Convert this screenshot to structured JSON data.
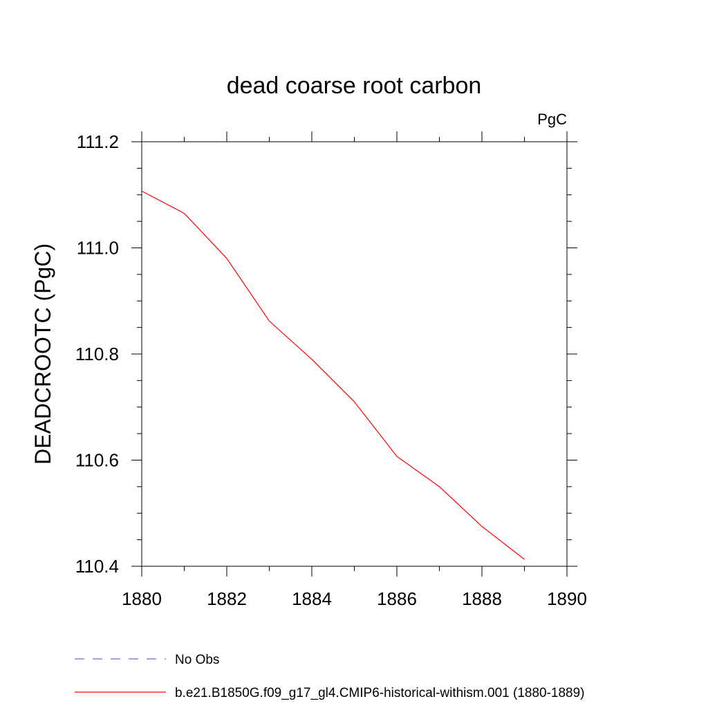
{
  "chart_data": {
    "type": "line",
    "title": "dead coarse root carbon",
    "units_label": "PgC",
    "xlabel": "",
    "ylabel": "DEADCROOTC  (PgC)",
    "xlim": [
      1880,
      1890
    ],
    "ylim": [
      110.4,
      111.2
    ],
    "x_ticks": [
      "1880",
      "1882",
      "1884",
      "1886",
      "1888",
      "1890"
    ],
    "y_ticks": [
      "110.4",
      "110.6",
      "110.8",
      "111.0",
      "111.2"
    ],
    "grid": false,
    "legend_position": "bottom-left",
    "series": [
      {
        "name": "No Obs",
        "style": "dashed",
        "color": "#7b68c8",
        "x": [],
        "y": []
      },
      {
        "name": "b.e21.B1850G.f09_g17_gl4.CMIP6-historical-withism.001 (1880-1889)",
        "style": "solid",
        "color": "#ff0000",
        "x": [
          1880,
          1881,
          1882,
          1883,
          1884,
          1885,
          1886,
          1887,
          1888,
          1889
        ],
        "y": [
          111.107,
          111.065,
          110.98,
          110.862,
          110.79,
          110.71,
          110.607,
          110.55,
          110.475,
          110.413
        ]
      }
    ]
  }
}
